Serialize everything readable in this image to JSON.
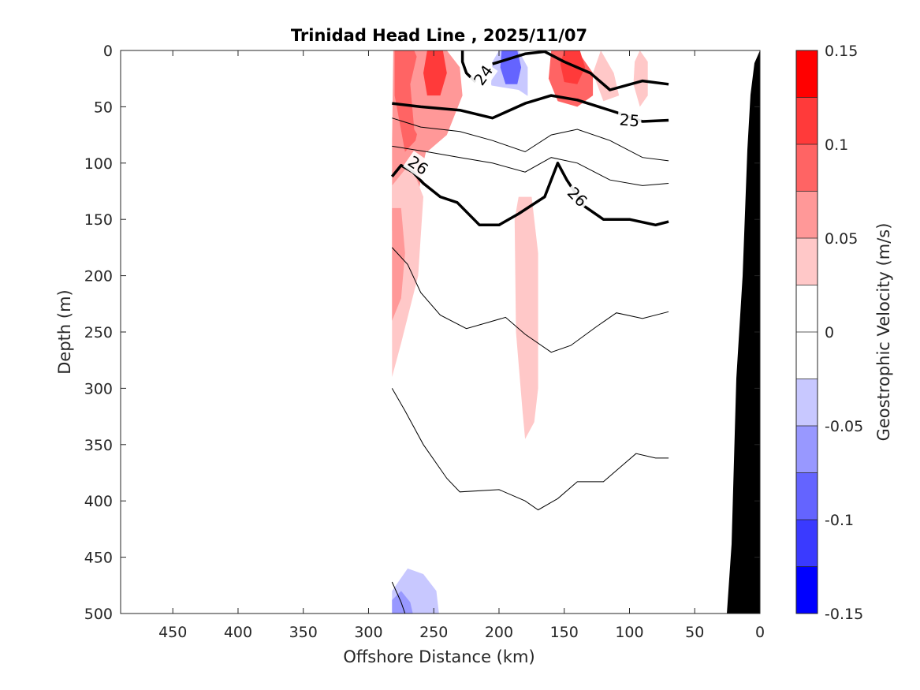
{
  "chart_data": {
    "type": "contourf",
    "title": "Trinidad Head Line , 2025/11/07",
    "xlabel": "Offshore Distance (km)",
    "ylabel": "Depth (m)",
    "xlim": [
      490,
      0
    ],
    "ylim": [
      0,
      500
    ],
    "x_ticks": [
      450,
      400,
      350,
      300,
      250,
      200,
      150,
      100,
      50,
      0
    ],
    "y_ticks": [
      0,
      50,
      100,
      150,
      200,
      250,
      300,
      350,
      400,
      450,
      500
    ],
    "colorbar": {
      "label": "Geostrophic Velocity (m/s)",
      "range": [
        -0.15,
        0.15
      ],
      "ticks": [
        0.15,
        0.1,
        0.05,
        0,
        -0.05,
        -0.1,
        -0.15
      ],
      "levels": [
        -0.15,
        -0.125,
        -0.1,
        -0.075,
        -0.05,
        -0.025,
        0,
        0.025,
        0.05,
        0.075,
        0.1,
        0.125,
        0.15
      ],
      "colors": [
        "#0000ff",
        "#3a3aff",
        "#6464ff",
        "#9898ff",
        "#c8c8ff",
        "#ffffff",
        "#ffffff",
        "#ffc8c8",
        "#ff9898",
        "#ff6464",
        "#ff3a3a",
        "#ff0000"
      ]
    },
    "velocity_patches": [
      {
        "value": 0.05,
        "points": [
          [
            281,
            0
          ],
          [
            253,
            0
          ],
          [
            250,
            20
          ],
          [
            250,
            60
          ],
          [
            258,
            100
          ],
          [
            262,
            130
          ],
          [
            268,
            150
          ],
          [
            282,
            160
          ],
          [
            282,
            80
          ],
          [
            281,
            0
          ]
        ]
      },
      {
        "value": 0.025,
        "points": [
          [
            282,
            120
          ],
          [
            268,
            100
          ],
          [
            258,
            130
          ],
          [
            262,
            200
          ],
          [
            275,
            260
          ],
          [
            282,
            290
          ],
          [
            282,
            120
          ]
        ]
      },
      {
        "value": 0.075,
        "points": [
          [
            280,
            0
          ],
          [
            265,
            0
          ],
          [
            258,
            20
          ],
          [
            258,
            50
          ],
          [
            264,
            80
          ],
          [
            272,
            90
          ],
          [
            280,
            40
          ],
          [
            280,
            0
          ]
        ]
      },
      {
        "value": 0.05,
        "points": [
          [
            262,
            0
          ],
          [
            240,
            0
          ],
          [
            230,
            15
          ],
          [
            228,
            40
          ],
          [
            240,
            75
          ],
          [
            255,
            90
          ],
          [
            265,
            70
          ],
          [
            268,
            30
          ],
          [
            262,
            0
          ]
        ]
      },
      {
        "value": 0.1,
        "points": [
          [
            255,
            0
          ],
          [
            243,
            0
          ],
          [
            240,
            20
          ],
          [
            245,
            40
          ],
          [
            255,
            40
          ],
          [
            258,
            20
          ],
          [
            255,
            0
          ]
        ]
      },
      {
        "value": 0.05,
        "points": [
          [
            282,
            140
          ],
          [
            275,
            140
          ],
          [
            272,
            180
          ],
          [
            275,
            220
          ],
          [
            282,
            240
          ],
          [
            282,
            140
          ]
        ]
      },
      {
        "value": -0.05,
        "points": [
          [
            200,
            0
          ],
          [
            185,
            0
          ],
          [
            178,
            15
          ],
          [
            178,
            40
          ],
          [
            188,
            60
          ],
          [
            200,
            55
          ],
          [
            206,
            30
          ],
          [
            205,
            10
          ],
          [
            200,
            0
          ]
        ]
      },
      {
        "value": -0.1,
        "points": [
          [
            198,
            0
          ],
          [
            186,
            0
          ],
          [
            183,
            15
          ],
          [
            186,
            30
          ],
          [
            195,
            30
          ],
          [
            199,
            15
          ],
          [
            198,
            0
          ]
        ]
      },
      {
        "value": -0.025,
        "points": [
          [
            212,
            30
          ],
          [
            200,
            60
          ],
          [
            185,
            72
          ],
          [
            172,
            65
          ],
          [
            172,
            45
          ],
          [
            185,
            35
          ],
          [
            212,
            30
          ]
        ]
      },
      {
        "value": 0.075,
        "points": [
          [
            160,
            0
          ],
          [
            140,
            0
          ],
          [
            128,
            20
          ],
          [
            128,
            40
          ],
          [
            140,
            50
          ],
          [
            155,
            45
          ],
          [
            162,
            25
          ],
          [
            160,
            0
          ]
        ]
      },
      {
        "value": 0.1,
        "points": [
          [
            150,
            0
          ],
          [
            138,
            0
          ],
          [
            134,
            15
          ],
          [
            140,
            30
          ],
          [
            150,
            28
          ],
          [
            153,
            12
          ],
          [
            150,
            0
          ]
        ]
      },
      {
        "value": 0.025,
        "points": [
          [
            122,
            0
          ],
          [
            112,
            20
          ],
          [
            108,
            40
          ],
          [
            120,
            45
          ],
          [
            128,
            20
          ],
          [
            122,
            0
          ]
        ]
      },
      {
        "value": 0.025,
        "points": [
          [
            92,
            0
          ],
          [
            86,
            10
          ],
          [
            86,
            40
          ],
          [
            92,
            50
          ],
          [
            97,
            30
          ],
          [
            96,
            10
          ],
          [
            92,
            0
          ]
        ]
      },
      {
        "value": -0.025,
        "points": [
          [
            72,
            30
          ],
          [
            70,
            40
          ],
          [
            68,
            80
          ],
          [
            70,
            105
          ],
          [
            74,
            70
          ],
          [
            72,
            30
          ]
        ]
      },
      {
        "value": 0.025,
        "points": [
          [
            185,
            130
          ],
          [
            175,
            130
          ],
          [
            170,
            180
          ],
          [
            170,
            300
          ],
          [
            173,
            330
          ],
          [
            180,
            345
          ],
          [
            182,
            320
          ],
          [
            187,
            250
          ],
          [
            188,
            150
          ],
          [
            185,
            130
          ]
        ]
      },
      {
        "value": -0.025,
        "points": [
          [
            140,
            120
          ],
          [
            130,
            125
          ],
          [
            115,
            150
          ],
          [
            115,
            200
          ],
          [
            122,
            250
          ],
          [
            132,
            285
          ],
          [
            143,
            275
          ],
          [
            146,
            230
          ],
          [
            145,
            150
          ],
          [
            140,
            120
          ]
        ]
      },
      {
        "value": -0.025,
        "points": [
          [
            262,
            310
          ],
          [
            250,
            320
          ],
          [
            238,
            330
          ],
          [
            230,
            400
          ],
          [
            230,
            500
          ],
          [
            282,
            500
          ],
          [
            282,
            390
          ],
          [
            272,
            360
          ],
          [
            262,
            310
          ]
        ]
      },
      {
        "value": -0.05,
        "points": [
          [
            270,
            460
          ],
          [
            258,
            465
          ],
          [
            248,
            480
          ],
          [
            246,
            500
          ],
          [
            282,
            500
          ],
          [
            282,
            480
          ],
          [
            270,
            460
          ]
        ]
      },
      {
        "value": -0.075,
        "points": [
          [
            275,
            480
          ],
          [
            268,
            490
          ],
          [
            266,
            500
          ],
          [
            282,
            500
          ],
          [
            282,
            488
          ],
          [
            275,
            480
          ]
        ]
      }
    ],
    "isopycnals_bold": [
      {
        "label": "24",
        "points": [
          [
            218,
            28
          ],
          [
            225,
            20
          ],
          [
            228,
            10
          ],
          [
            228,
            0
          ]
        ]
      },
      {
        "label": "24",
        "points": [
          [
            205,
            12
          ],
          [
            180,
            3
          ],
          [
            165,
            1
          ],
          [
            150,
            10
          ],
          [
            130,
            20
          ],
          [
            115,
            35
          ],
          [
            90,
            27
          ],
          [
            70,
            30
          ]
        ]
      },
      {
        "label": "25",
        "points": [
          [
            282,
            47
          ],
          [
            260,
            50
          ],
          [
            230,
            53
          ],
          [
            205,
            60
          ],
          [
            180,
            47
          ],
          [
            160,
            40
          ],
          [
            140,
            44
          ],
          [
            110,
            55
          ],
          [
            90,
            63
          ],
          [
            70,
            62
          ]
        ]
      },
      {
        "label": "26",
        "points": [
          [
            282,
            112
          ],
          [
            275,
            102
          ],
          [
            266,
            108
          ],
          [
            258,
            118
          ],
          [
            245,
            130
          ],
          [
            232,
            135
          ],
          [
            215,
            155
          ],
          [
            200,
            155
          ],
          [
            185,
            145
          ],
          [
            165,
            130
          ],
          [
            155,
            100
          ],
          [
            148,
            115
          ],
          [
            135,
            138
          ],
          [
            120,
            150
          ],
          [
            100,
            150
          ],
          [
            80,
            155
          ],
          [
            70,
            152
          ]
        ]
      }
    ],
    "isopycnals_thin": [
      {
        "points": [
          [
            282,
            60
          ],
          [
            260,
            68
          ],
          [
            230,
            72
          ],
          [
            205,
            80
          ],
          [
            180,
            90
          ],
          [
            160,
            75
          ],
          [
            140,
            70
          ],
          [
            115,
            80
          ],
          [
            90,
            95
          ],
          [
            70,
            98
          ]
        ]
      },
      {
        "points": [
          [
            282,
            85
          ],
          [
            255,
            90
          ],
          [
            230,
            95
          ],
          [
            205,
            100
          ],
          [
            180,
            108
          ],
          [
            160,
            95
          ],
          [
            140,
            100
          ],
          [
            115,
            115
          ],
          [
            90,
            120
          ],
          [
            70,
            118
          ]
        ]
      },
      {
        "points": [
          [
            282,
            175
          ],
          [
            270,
            190
          ],
          [
            260,
            215
          ],
          [
            245,
            235
          ],
          [
            225,
            247
          ],
          [
            210,
            242
          ],
          [
            195,
            237
          ],
          [
            180,
            252
          ],
          [
            160,
            268
          ],
          [
            145,
            262
          ],
          [
            125,
            245
          ],
          [
            110,
            233
          ],
          [
            90,
            238
          ],
          [
            70,
            232
          ]
        ]
      },
      {
        "points": [
          [
            282,
            300
          ],
          [
            272,
            320
          ],
          [
            258,
            350
          ],
          [
            240,
            380
          ],
          [
            230,
            392
          ],
          [
            200,
            390
          ],
          [
            180,
            400
          ],
          [
            170,
            408
          ],
          [
            155,
            398
          ],
          [
            140,
            383
          ],
          [
            120,
            383
          ],
          [
            105,
            368
          ],
          [
            95,
            358
          ],
          [
            80,
            362
          ],
          [
            70,
            362
          ]
        ]
      },
      {
        "points": [
          [
            282,
            472
          ],
          [
            275,
            490
          ],
          [
            272,
            500
          ]
        ]
      }
    ]
  }
}
